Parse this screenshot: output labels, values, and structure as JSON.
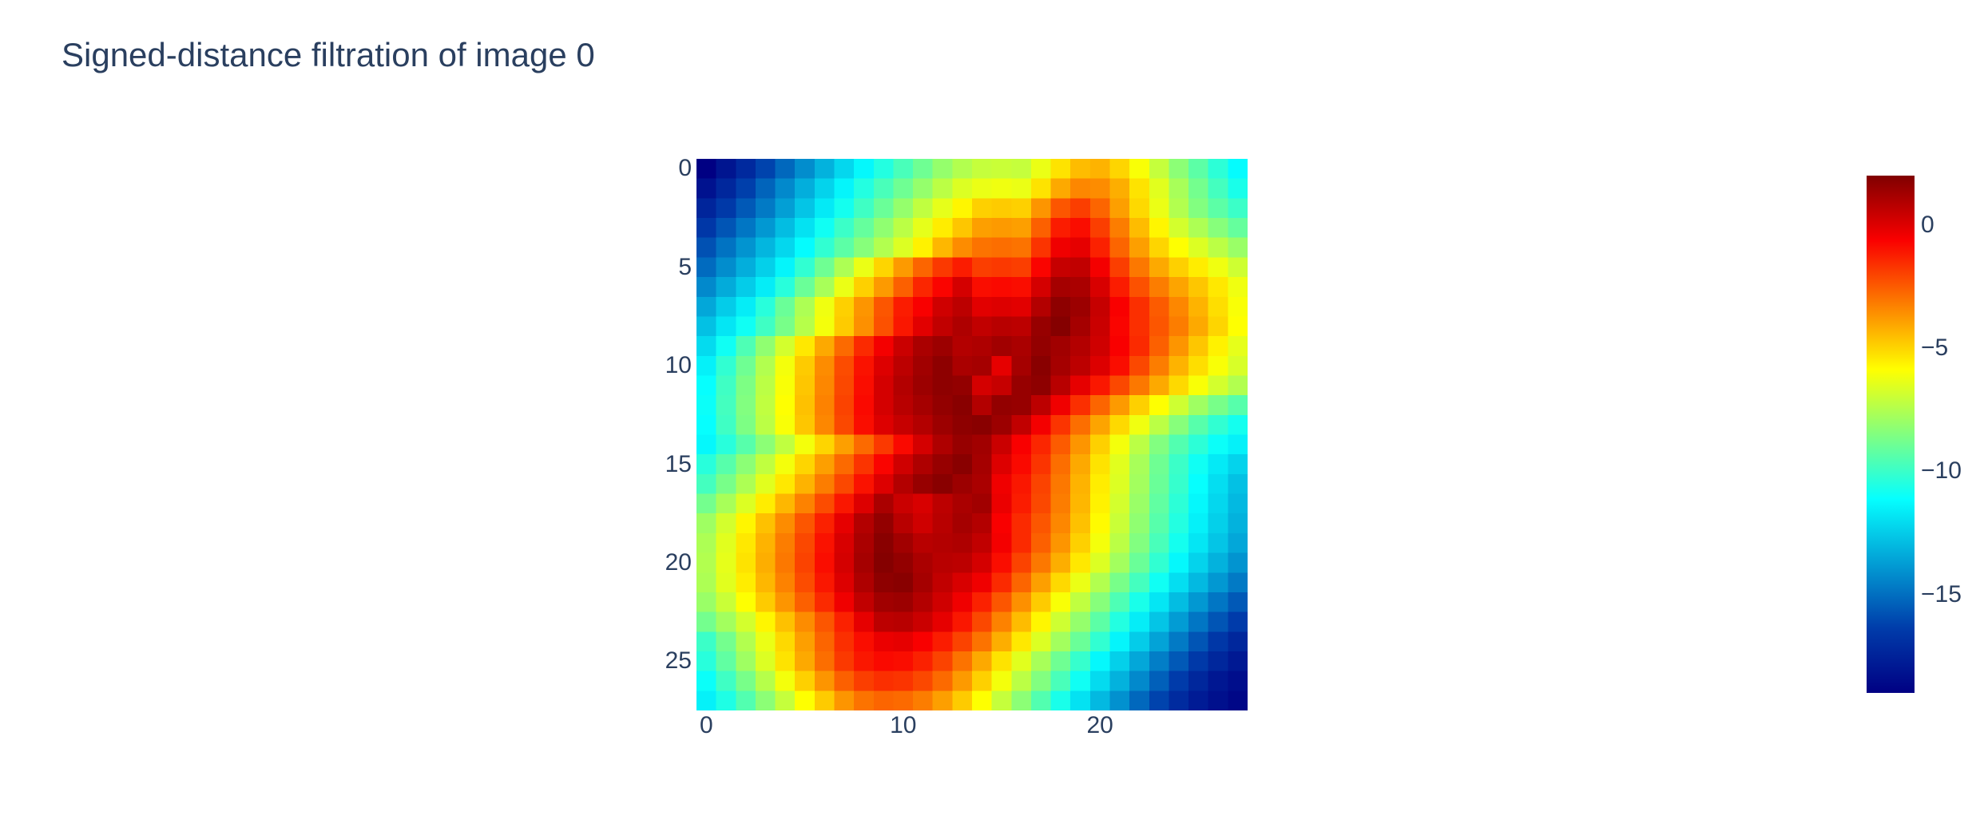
{
  "title": "Signed-distance filtration of image 0",
  "colors": {
    "title_text": "#2a3f5f",
    "tick_text": "#2a3f5f",
    "background": "#ffffff"
  },
  "axes": {
    "x_tick_labels": [
      "0",
      "10",
      "20"
    ],
    "x_tick_values": [
      0,
      10,
      20
    ],
    "y_tick_labels": [
      "0",
      "5",
      "10",
      "15",
      "20",
      "25"
    ],
    "y_tick_values": [
      0,
      5,
      10,
      15,
      20,
      25
    ]
  },
  "colorbar": {
    "tick_labels": [
      "0",
      "−5",
      "−10",
      "−15"
    ],
    "tick_values": [
      0,
      -5,
      -10,
      -15
    ]
  },
  "chart_data": {
    "type": "heatmap",
    "title": "Signed-distance filtration of image 0",
    "xlabel": "",
    "ylabel": "",
    "x_range": [
      0,
      27
    ],
    "y_range": [
      0,
      27
    ],
    "y_axis_reversed": true,
    "grid": false,
    "legend": "colorbar-right",
    "colorscale_name": "Jet",
    "colorscale": [
      [
        0.0,
        [
          0,
          0,
          131
        ]
      ],
      [
        0.125,
        [
          0,
          60,
          170
        ]
      ],
      [
        0.375,
        [
          5,
          255,
          255
        ]
      ],
      [
        0.625,
        [
          255,
          255,
          0
        ]
      ],
      [
        0.875,
        [
          250,
          0,
          0
        ]
      ],
      [
        1.0,
        [
          128,
          0,
          0
        ]
      ]
    ],
    "zmin": -19,
    "zmax": 2,
    "z": [
      [
        -19.0,
        -18.1,
        -17.2,
        -16.2,
        -15.2,
        -14.2,
        -13.2,
        -12.2,
        -11.3,
        -10.5,
        -9.7,
        -8.9,
        -8.1,
        -7.5,
        -7.1,
        -7.0,
        -7.1,
        -6.3,
        -5.3,
        -4.5,
        -4.3,
        -5.0,
        -6.0,
        -7.1,
        -8.3,
        -9.3,
        -10.3,
        -11.2
      ],
      [
        -18.2,
        -17.3,
        -16.3,
        -15.3,
        -14.3,
        -13.3,
        -12.3,
        -11.4,
        -10.5,
        -9.7,
        -8.9,
        -8.1,
        -7.3,
        -6.6,
        -6.3,
        -6.2,
        -6.3,
        -5.3,
        -4.1,
        -3.4,
        -3.5,
        -4.2,
        -5.3,
        -6.5,
        -7.7,
        -8.8,
        -9.8,
        -10.7
      ],
      [
        -17.4,
        -16.5,
        -15.6,
        -14.7,
        -13.7,
        -12.7,
        -11.7,
        -10.8,
        -9.9,
        -9.0,
        -8.1,
        -7.2,
        -6.4,
        -5.7,
        -4.9,
        -4.8,
        -4.9,
        -3.7,
        -2.4,
        -1.9,
        -2.7,
        -3.9,
        -5.1,
        -6.3,
        -7.5,
        -8.5,
        -9.3,
        -10.0
      ],
      [
        -16.6,
        -15.7,
        -14.8,
        -13.9,
        -12.9,
        -11.9,
        -10.9,
        -10.0,
        -9.1,
        -8.2,
        -7.3,
        -6.4,
        -5.5,
        -4.7,
        -3.9,
        -3.8,
        -3.9,
        -2.6,
        -1.2,
        -0.9,
        -1.9,
        -3.2,
        -4.5,
        -5.7,
        -6.8,
        -7.6,
        -8.4,
        -9.1
      ],
      [
        -15.8,
        -14.9,
        -14.0,
        -13.1,
        -12.2,
        -11.2,
        -10.2,
        -9.3,
        -8.4,
        -7.5,
        -6.6,
        -5.6,
        -4.4,
        -3.5,
        -3.0,
        -2.9,
        -3.0,
        -1.7,
        -0.4,
        -0.2,
        -1.3,
        -2.7,
        -3.9,
        -5.0,
        -5.9,
        -6.6,
        -7.3,
        -8.0
      ],
      [
        -15.1,
        -14.2,
        -13.3,
        -12.4,
        -11.4,
        -10.2,
        -8.9,
        -7.6,
        -6.3,
        -5.0,
        -3.8,
        -2.7,
        -1.8,
        -1.2,
        -1.9,
        -1.8,
        -1.9,
        -0.7,
        0.5,
        0.6,
        -0.5,
        -1.9,
        -3.1,
        -4.1,
        -4.9,
        -5.5,
        -6.2,
        -6.9
      ],
      [
        -14.3,
        -13.4,
        -12.5,
        -11.6,
        -10.4,
        -9.0,
        -7.7,
        -6.3,
        -4.9,
        -3.8,
        -2.6,
        -1.4,
        -0.7,
        0.2,
        -0.9,
        -0.8,
        -0.9,
        0.2,
        1.2,
        1.1,
        0.1,
        -1.2,
        -2.3,
        -3.2,
        -4.0,
        -4.7,
        -5.4,
        -6.2
      ],
      [
        -13.5,
        -12.5,
        -11.6,
        -10.4,
        -9.0,
        -7.6,
        -6.2,
        -4.9,
        -3.7,
        -2.4,
        -1.2,
        -0.6,
        0.3,
        0.7,
        -0.1,
        0.0,
        -0.1,
        0.9,
        1.7,
        1.4,
        0.5,
        -0.6,
        -1.6,
        -2.5,
        -3.4,
        -4.3,
        -5.2,
        -6.0
      ],
      [
        -12.8,
        -11.8,
        -10.9,
        -9.9,
        -8.7,
        -7.4,
        -6.1,
        -4.8,
        -3.6,
        -2.3,
        -1.1,
        -0.1,
        0.6,
        1.0,
        0.6,
        0.8,
        0.7,
        1.5,
        1.9,
        1.2,
        0.4,
        -0.7,
        -1.6,
        -2.4,
        -3.2,
        -4.1,
        -5.0,
        -5.9
      ],
      [
        -12.1,
        -10.9,
        -9.6,
        -8.2,
        -6.8,
        -5.4,
        -4.1,
        -2.8,
        -1.5,
        -0.5,
        0.4,
        1.1,
        1.4,
        0.9,
        1.0,
        1.3,
        1.1,
        1.6,
        1.3,
        0.9,
        0.3,
        -0.6,
        -1.5,
        -2.6,
        -3.7,
        -4.7,
        -5.6,
        -6.4
      ],
      [
        -11.5,
        -10.2,
        -8.9,
        -7.5,
        -6.1,
        -4.8,
        -3.5,
        -2.2,
        -1.0,
        0.0,
        0.7,
        1.3,
        1.7,
        1.1,
        1.2,
        -0.2,
        1.2,
        1.8,
        1.2,
        0.7,
        0.0,
        -0.9,
        -2.1,
        -3.2,
        -4.3,
        -5.2,
        -6.0,
        -6.7
      ],
      [
        -11.1,
        -9.9,
        -8.6,
        -7.3,
        -6.0,
        -4.7,
        -3.4,
        -2.1,
        -0.9,
        0.2,
        0.9,
        1.4,
        1.7,
        1.6,
        0.2,
        0.5,
        1.5,
        1.7,
        0.8,
        -0.2,
        -1.1,
        -2.1,
        -3.1,
        -4.1,
        -5.1,
        -6.0,
        -6.8,
        -7.5
      ],
      [
        -11.0,
        -9.8,
        -8.5,
        -7.2,
        -5.9,
        -4.6,
        -3.3,
        -2.0,
        -0.8,
        0.2,
        0.8,
        1.2,
        1.6,
        1.8,
        0.9,
        1.6,
        1.5,
        0.7,
        -0.4,
        -1.6,
        -2.7,
        -3.8,
        -4.9,
        -5.9,
        -6.9,
        -7.9,
        -8.7,
        -9.4
      ],
      [
        -11.1,
        -9.9,
        -8.6,
        -7.3,
        -6.0,
        -4.7,
        -3.4,
        -2.1,
        -0.9,
        0.0,
        0.5,
        0.9,
        1.4,
        1.7,
        1.8,
        1.4,
        0.6,
        -0.5,
        -1.7,
        -2.9,
        -4.0,
        -5.1,
        -6.2,
        -7.3,
        -8.4,
        -9.4,
        -10.2,
        -10.8
      ],
      [
        -11.3,
        -10.4,
        -9.4,
        -8.3,
        -7.2,
        -6.1,
        -5.0,
        -3.9,
        -2.8,
        -1.8,
        -0.8,
        0.2,
        1.0,
        1.5,
        1.3,
        0.4,
        -0.6,
        -1.4,
        -2.5,
        -3.7,
        -4.9,
        -6.1,
        -7.3,
        -8.5,
        -9.5,
        -10.3,
        -11.0,
        -11.5
      ],
      [
        -10.4,
        -9.4,
        -8.3,
        -7.2,
        -6.1,
        -5.0,
        -3.9,
        -2.8,
        -1.7,
        -0.7,
        0.3,
        1.0,
        1.5,
        1.8,
        1.2,
        0.0,
        -0.8,
        -1.7,
        -2.9,
        -4.1,
        -5.3,
        -6.5,
        -7.7,
        -8.9,
        -10.0,
        -10.9,
        -11.7,
        -12.3
      ],
      [
        -9.8,
        -8.7,
        -7.6,
        -6.5,
        -5.4,
        -4.3,
        -3.2,
        -2.1,
        -1.0,
        0.0,
        0.9,
        1.5,
        1.8,
        1.4,
        1.1,
        -0.4,
        -1.1,
        -2.0,
        -3.1,
        -4.3,
        -5.5,
        -6.6,
        -7.8,
        -9.0,
        -10.1,
        -11.1,
        -12.0,
        -12.8
      ],
      [
        -8.8,
        -7.7,
        -6.6,
        -5.5,
        -4.4,
        -3.3,
        -2.2,
        -1.1,
        0.0,
        1.1,
        0.4,
        0.1,
        0.7,
        1.1,
        1.3,
        -0.3,
        -1.2,
        -2.1,
        -3.2,
        -4.4,
        -5.6,
        -6.8,
        -8.0,
        -9.2,
        -10.3,
        -11.3,
        -12.2,
        -13.0
      ],
      [
        -7.9,
        -6.8,
        -5.7,
        -4.6,
        -3.5,
        -2.4,
        -1.3,
        -0.2,
        0.9,
        1.6,
        0.8,
        0.3,
        0.8,
        1.2,
        0.9,
        -0.6,
        -1.5,
        -2.4,
        -3.4,
        -4.6,
        -5.8,
        -7.0,
        -8.2,
        -9.4,
        -10.5,
        -11.5,
        -12.4,
        -13.2
      ],
      [
        -7.6,
        -6.5,
        -5.4,
        -4.3,
        -3.2,
        -2.1,
        -1.0,
        0.1,
        1.1,
        1.8,
        1.3,
        0.8,
        0.9,
        1.0,
        0.6,
        -0.5,
        -1.5,
        -2.6,
        -3.7,
        -4.9,
        -6.1,
        -7.3,
        -8.5,
        -9.7,
        -10.8,
        -11.8,
        -12.7,
        -13.5
      ],
      [
        -7.5,
        -6.4,
        -5.3,
        -4.2,
        -3.1,
        -2.0,
        -0.9,
        0.2,
        1.2,
        1.9,
        1.6,
        1.1,
        0.8,
        0.7,
        0.2,
        -0.9,
        -2.0,
        -3.1,
        -4.2,
        -5.4,
        -6.6,
        -7.8,
        -9.0,
        -10.2,
        -11.3,
        -12.3,
        -13.2,
        -14.0
      ],
      [
        -7.6,
        -6.5,
        -5.5,
        -4.4,
        -3.3,
        -2.2,
        -1.1,
        0.0,
        1.0,
        1.7,
        1.8,
        1.2,
        0.6,
        0.1,
        -0.4,
        -1.5,
        -2.7,
        -3.9,
        -5.1,
        -6.3,
        -7.5,
        -8.7,
        -9.8,
        -10.9,
        -12.0,
        -13.0,
        -13.9,
        -14.7
      ],
      [
        -8.0,
        -7.0,
        -5.9,
        -4.8,
        -3.7,
        -2.6,
        -1.5,
        -0.4,
        0.6,
        1.3,
        1.4,
        0.9,
        0.3,
        -0.4,
        -1.3,
        -2.4,
        -3.6,
        -4.8,
        -6.0,
        -7.2,
        -8.4,
        -9.6,
        -10.7,
        -11.8,
        -12.9,
        -13.9,
        -14.8,
        -15.6
      ],
      [
        -8.8,
        -7.8,
        -6.8,
        -5.7,
        -4.6,
        -3.5,
        -2.4,
        -1.3,
        -0.2,
        0.7,
        0.8,
        0.4,
        -0.2,
        -1.1,
        -2.1,
        -3.3,
        -4.5,
        -5.7,
        -6.9,
        -8.1,
        -9.3,
        -10.5,
        -11.6,
        -12.7,
        -13.8,
        -14.8,
        -15.7,
        -16.4
      ],
      [
        -10.0,
        -8.8,
        -7.5,
        -6.3,
        -5.1,
        -3.9,
        -2.7,
        -1.6,
        -0.9,
        -0.3,
        -0.2,
        -0.6,
        -1.2,
        -2.0,
        -3.0,
        -4.2,
        -5.4,
        -6.6,
        -7.8,
        -9.0,
        -10.2,
        -11.4,
        -12.5,
        -13.6,
        -14.7,
        -15.7,
        -16.6,
        -17.3
      ],
      [
        -10.4,
        -9.2,
        -7.9,
        -6.6,
        -5.3,
        -4.1,
        -2.9,
        -1.8,
        -1.1,
        -0.8,
        -0.9,
        -1.3,
        -2.0,
        -3.0,
        -4.1,
        -5.3,
        -6.5,
        -7.7,
        -8.9,
        -10.1,
        -11.3,
        -12.4,
        -13.5,
        -14.6,
        -15.6,
        -16.5,
        -17.3,
        -17.9
      ],
      [
        -11.0,
        -9.9,
        -8.7,
        -7.4,
        -6.1,
        -4.9,
        -3.7,
        -2.6,
        -1.9,
        -1.6,
        -1.7,
        -2.1,
        -2.8,
        -3.8,
        -4.9,
        -6.1,
        -7.3,
        -8.5,
        -9.7,
        -10.9,
        -12.1,
        -13.2,
        -14.3,
        -15.4,
        -16.4,
        -17.3,
        -18.0,
        -18.4
      ],
      [
        -11.5,
        -10.6,
        -9.5,
        -8.3,
        -7.1,
        -5.9,
        -4.8,
        -3.7,
        -3.0,
        -2.7,
        -2.8,
        -3.2,
        -3.9,
        -4.8,
        -5.9,
        -7.1,
        -8.3,
        -9.5,
        -10.7,
        -11.9,
        -13.0,
        -14.1,
        -15.2,
        -16.2,
        -17.1,
        -17.8,
        -18.3,
        -18.7
      ]
    ]
  }
}
